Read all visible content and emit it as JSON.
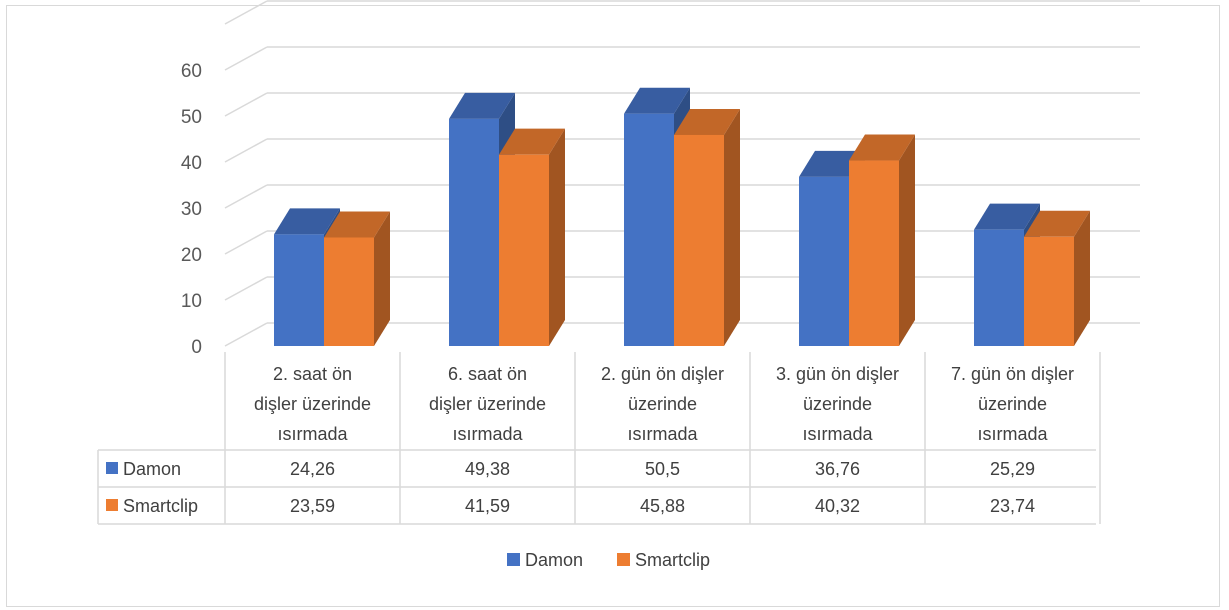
{
  "chart_data": {
    "type": "bar",
    "style": "3d-clustered-column-with-data-table",
    "categories": [
      "2. saat ön dişler üzerinde ısırmada",
      "6. saat ön dişler üzerinde ısırmada",
      "2. gün ön dişler üzerinde ısırmada",
      "3. gün ön dişler üzerinde ısırmada",
      "7. gün ön dişler üzerinde ısırmada"
    ],
    "series": [
      {
        "name": "Damon",
        "color": "#4472c4",
        "values": [
          24.26,
          49.38,
          50.5,
          36.76,
          25.29
        ],
        "labels": [
          "24,26",
          "49,38",
          "50,5",
          "36,76",
          "25,29"
        ]
      },
      {
        "name": "Smartclip",
        "color": "#ed7d31",
        "values": [
          23.59,
          41.59,
          45.88,
          40.32,
          23.74
        ],
        "labels": [
          "23,59",
          "41,59",
          "45,88",
          "40,32",
          "23,74"
        ]
      }
    ],
    "yticks": [
      "0",
      "10",
      "20",
      "30",
      "40",
      "50",
      "60"
    ],
    "ylim": [
      0,
      70
    ],
    "grid": true,
    "legend": "bottom",
    "title": "",
    "xlabel": "",
    "ylabel": ""
  }
}
